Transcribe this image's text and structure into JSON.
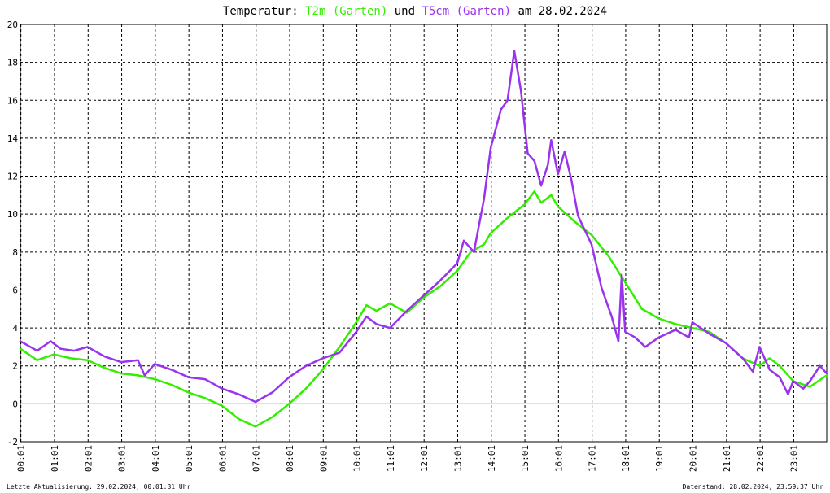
{
  "chart_data": {
    "type": "line",
    "title": {
      "prefix": "Temperatur: ",
      "series1_label": "T2m (Garten)",
      "connector": " und ",
      "series2_label": "T5cm (Garten)",
      "suffix": " am 28.02.2024"
    },
    "ylim": [
      -2,
      20
    ],
    "yticks": [
      -2,
      0,
      2,
      4,
      6,
      8,
      10,
      12,
      14,
      16,
      18,
      20
    ],
    "xlim": [
      0,
      24
    ],
    "xtick_labels": [
      "00:01",
      "01:01",
      "02:01",
      "03:01",
      "04:01",
      "05:01",
      "06:01",
      "07:01",
      "08:01",
      "09:01",
      "10:01",
      "11:01",
      "12:01",
      "13:01",
      "14:01",
      "15:01",
      "16:01",
      "17:01",
      "18:01",
      "19:01",
      "20:01",
      "21:01",
      "22:01",
      "23:01"
    ],
    "grid": true,
    "series": [
      {
        "name": "T2m (Garten)",
        "color": "#33ee00",
        "x": [
          0,
          0.5,
          1,
          1.5,
          2,
          2.5,
          3,
          3.5,
          4,
          4.5,
          5,
          5.5,
          6,
          6.5,
          7,
          7.5,
          8,
          8.5,
          9,
          9.5,
          10,
          10.3,
          10.6,
          11,
          11.5,
          12,
          12.5,
          13,
          13.4,
          13.8,
          14,
          14.5,
          15,
          15.3,
          15.5,
          15.8,
          16,
          16.5,
          17,
          17.5,
          18,
          18.5,
          19,
          19.5,
          20,
          20.5,
          21,
          21.5,
          22,
          22.3,
          22.6,
          23,
          23.5,
          24
        ],
        "y": [
          2.9,
          2.3,
          2.6,
          2.4,
          2.3,
          1.9,
          1.6,
          1.5,
          1.3,
          1.0,
          0.6,
          0.3,
          -0.1,
          -0.8,
          -1.2,
          -0.7,
          0.0,
          0.8,
          1.8,
          3.0,
          4.3,
          5.2,
          4.9,
          5.3,
          4.8,
          5.6,
          6.2,
          7.0,
          8.0,
          8.4,
          9.0,
          9.8,
          10.5,
          11.2,
          10.6,
          11.0,
          10.4,
          9.6,
          8.9,
          7.8,
          6.4,
          5.0,
          4.5,
          4.2,
          4.0,
          3.8,
          3.2,
          2.4,
          2.0,
          2.4,
          2.0,
          1.2,
          0.9,
          1.5
        ]
      },
      {
        "name": "T5cm (Garten)",
        "color": "#9933ee",
        "x": [
          0,
          0.5,
          0.9,
          1.2,
          1.6,
          2,
          2.5,
          3,
          3.5,
          3.7,
          4,
          4.5,
          5,
          5.5,
          6,
          6.5,
          7,
          7.5,
          8,
          8.5,
          9,
          9.5,
          10,
          10.3,
          10.6,
          11,
          11.5,
          12,
          12.5,
          13,
          13.2,
          13.5,
          13.8,
          14,
          14.3,
          14.5,
          14.7,
          14.9,
          15.1,
          15.3,
          15.5,
          15.7,
          15.8,
          16,
          16.2,
          16.4,
          16.6,
          17,
          17.3,
          17.6,
          17.8,
          17.9,
          18,
          18.3,
          18.6,
          19,
          19.5,
          19.9,
          20,
          20.5,
          21,
          21.5,
          21.8,
          22,
          22.3,
          22.6,
          22.85,
          23,
          23.3,
          23.5,
          23.8,
          24
        ],
        "y": [
          3.3,
          2.8,
          3.3,
          2.9,
          2.8,
          3.0,
          2.5,
          2.2,
          2.3,
          1.5,
          2.1,
          1.8,
          1.4,
          1.3,
          0.8,
          0.5,
          0.1,
          0.6,
          1.4,
          2.0,
          2.4,
          2.7,
          3.8,
          4.6,
          4.2,
          4.0,
          4.9,
          5.7,
          6.5,
          7.4,
          8.6,
          8.0,
          10.8,
          13.5,
          15.5,
          16.0,
          18.6,
          16.5,
          13.2,
          12.8,
          11.5,
          12.6,
          13.9,
          12.1,
          13.3,
          11.8,
          9.9,
          8.4,
          6.1,
          4.6,
          3.3,
          6.8,
          3.8,
          3.5,
          3.0,
          3.5,
          3.9,
          3.5,
          4.3,
          3.7,
          3.2,
          2.4,
          1.7,
          3.0,
          1.8,
          1.4,
          0.5,
          1.2,
          0.8,
          1.2,
          2.0,
          1.6
        ]
      }
    ],
    "footer_left": "Letzte Aktualisierung: 29.02.2024, 00:01:31 Uhr",
    "footer_right": "Datenstand: 28.02.2024, 23:59:37 Uhr"
  }
}
